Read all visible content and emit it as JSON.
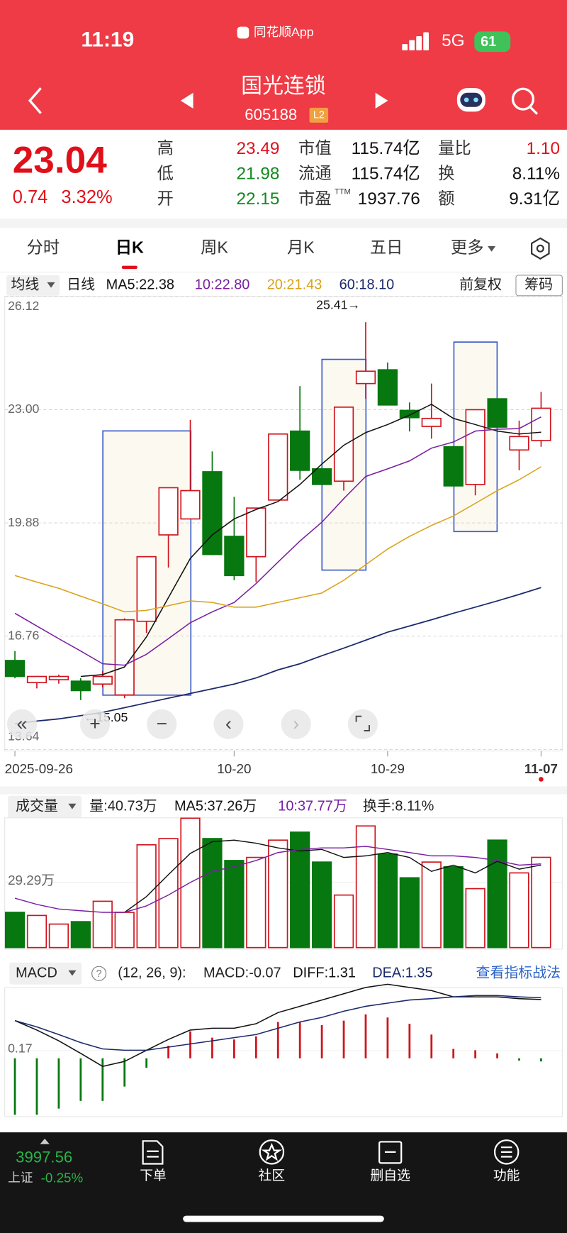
{
  "status_bar": {
    "time": "11:19",
    "app": "同花顺App",
    "network": "5G",
    "battery": "61"
  },
  "header": {
    "title": "国光连锁",
    "code": "605188",
    "badge": "L2"
  },
  "quote": {
    "price": "23.04",
    "change": "0.74",
    "change_pct": "3.32%",
    "stats": [
      [
        {
          "label": "高",
          "value": "23.49"
        },
        {
          "label": "低",
          "value": "21.98"
        },
        {
          "label": "开",
          "value": "22.15"
        }
      ],
      [
        {
          "label": "市值",
          "value": "115.74亿"
        },
        {
          "label": "流通",
          "value": "115.74亿"
        },
        {
          "label": "市盈",
          "sup": "TTM",
          "value": "1937.76"
        }
      ],
      [
        {
          "label": "量比",
          "value": "1.10"
        },
        {
          "label": "换",
          "value": "8.11%"
        },
        {
          "label": "额",
          "value": "9.31亿"
        }
      ]
    ]
  },
  "tabs": [
    "分时",
    "日K",
    "周K",
    "月K",
    "五日",
    "更多"
  ],
  "kline": {
    "indicator": "均线",
    "period": "日线",
    "adjust": "前复权",
    "chips": "筹码",
    "ylim": [
      13.64,
      26.12
    ],
    "yticks": [
      13.64,
      16.76,
      19.88,
      {
        "value": 23,
        "label": "23.00"
      },
      26.12
    ],
    "categories": [
      "2025-09-26",
      null,
      null,
      null,
      null,
      null,
      null,
      null,
      null,
      null,
      "10-20",
      null,
      null,
      null,
      null,
      null,
      null,
      "10-29",
      null,
      null,
      null,
      null,
      null,
      null,
      "11-07"
    ],
    "up_color": "#d0141c",
    "down_color": "#07770f",
    "open": [
      16.09,
      15.48,
      15.56,
      15.52,
      15.44,
      15.14,
      17.17,
      19.55,
      19.99,
      21.29,
      19.51,
      18.95,
      20.51,
      22.41,
      21.37,
      21.03,
      23.72,
      24.1,
      22.98,
      22.54,
      21.98,
      20.94,
      23.3,
      21.89,
      22.15
    ],
    "high": [
      16.35,
      15.65,
      15.7,
      15.6,
      15.8,
      17.25,
      18.95,
      20.85,
      22.72,
      21.85,
      20.6,
      20.29,
      22.33,
      23.65,
      21.4,
      23.07,
      25.41,
      24.3,
      23.2,
      23.72,
      21.98,
      23.0,
      23.3,
      22.7,
      23.49
    ],
    "low": [
      15.6,
      15.32,
      15.45,
      15.0,
      15.35,
      15.05,
      16.85,
      18.65,
      19.99,
      19.01,
      18.3,
      18.25,
      20.51,
      21.07,
      20.94,
      20.77,
      23.3,
      23.13,
      22.4,
      22.2,
      20.9,
      20.64,
      22.52,
      21.33,
      21.98
    ],
    "close": [
      15.65,
      15.65,
      15.65,
      15.26,
      15.65,
      17.21,
      18.95,
      20.85,
      20.77,
      19.01,
      18.43,
      20.29,
      22.33,
      21.33,
      20.94,
      23.07,
      24.06,
      23.13,
      22.78,
      22.76,
      20.9,
      23.0,
      22.52,
      22.26,
      23.04
    ],
    "max_label": "25.41→",
    "min_label": "←15.05",
    "series": [
      {
        "label": "MA5:22.38",
        "color": "#111111",
        "values": [
          null,
          null,
          null,
          15.65,
          15.7,
          15.91,
          16.74,
          17.82,
          18.9,
          19.55,
          19.99,
          20.25,
          20.47,
          20.94,
          21.5,
          22.02,
          22.37,
          22.59,
          22.85,
          23.15,
          22.76,
          22.59,
          22.41,
          22.33,
          22.38
        ]
      },
      {
        "label": "10:22.80",
        "color": "#7a1fa2",
        "values": [
          17.39,
          17.04,
          16.69,
          16.35,
          16.0,
          15.96,
          16.26,
          16.69,
          17.13,
          17.43,
          17.69,
          18.21,
          18.8,
          19.38,
          19.9,
          20.55,
          21.16,
          21.37,
          21.59,
          21.94,
          22.11,
          22.41,
          22.46,
          22.48,
          22.8
        ]
      },
      {
        "label": "20:21.43",
        "color": "#d9a21b",
        "values": [
          18.43,
          18.25,
          18.08,
          17.86,
          17.65,
          17.43,
          17.47,
          17.6,
          17.73,
          17.69,
          17.56,
          17.56,
          17.69,
          17.82,
          17.95,
          18.3,
          18.73,
          19.16,
          19.51,
          19.81,
          20.07,
          20.42,
          20.77,
          21.07,
          21.43
        ]
      },
      {
        "label": "60:18.10",
        "color": "#1c2a6b",
        "values": [
          14.35,
          14.42,
          14.48,
          14.57,
          14.66,
          14.79,
          14.92,
          15.05,
          15.18,
          15.31,
          15.44,
          15.61,
          15.83,
          16.0,
          16.22,
          16.43,
          16.65,
          16.87,
          17.04,
          17.21,
          17.39,
          17.56,
          17.73,
          17.91,
          18.1
        ]
      }
    ]
  },
  "volume": {
    "title": "成交量",
    "volume_label": "量:40.73万",
    "turnover": "换手:8.11%",
    "ylim": [
      0,
      60
    ],
    "yticks": [
      {
        "value": 29.29,
        "label": "29.29万"
      }
    ],
    "values": [
      15.9,
      14.5,
      10.6,
      11.7,
      20.9,
      15.9,
      46.4,
      49.2,
      58.4,
      49.2,
      39.3,
      40.7,
      48.5,
      52.1,
      38.6,
      23.7,
      54.9,
      42.2,
      31.5,
      38.6,
      36.5,
      26.6,
      48.5,
      33.7,
      40.73
    ],
    "series": [
      {
        "label": "MA5:37.26万",
        "color": "#111111",
        "values": [
          null,
          null,
          null,
          null,
          null,
          15.9,
          23.0,
          32.9,
          42.5,
          47.8,
          48.5,
          47.1,
          45.0,
          43.6,
          44.3,
          40.7,
          41.4,
          42.9,
          40.7,
          34.4,
          37.2,
          33.7,
          39.0,
          35.4,
          37.26
        ]
      },
      {
        "label": "10:37.77万",
        "color": "#7a1fa2",
        "values": [
          22.3,
          19.5,
          17.4,
          16.6,
          15.9,
          15.9,
          18.8,
          23.7,
          29.4,
          34.4,
          36.5,
          39.3,
          42.9,
          44.3,
          45.0,
          45.0,
          45.7,
          44.3,
          42.9,
          41.4,
          41.4,
          40.7,
          39.3,
          37.2,
          37.77
        ]
      }
    ]
  },
  "macd": {
    "title": "MACD",
    "params": "(12, 26, 9):",
    "value_label": "MACD:-0.07",
    "link": "查看指标战法",
    "ylim": [
      -1.3,
      1.54
    ],
    "yticks": [
      0.17
    ],
    "values": [
      -1.26,
      -1.26,
      -1.12,
      -0.95,
      -0.95,
      -0.63,
      -0.21,
      0.28,
      0.6,
      0.46,
      0.42,
      0.49,
      0.81,
      0.81,
      0.74,
      0.84,
      0.98,
      0.91,
      0.77,
      0.53,
      0.21,
      0.18,
      0.11,
      -0.05,
      -0.07
    ],
    "series": [
      {
        "label": "DIFF:1.31",
        "color": "#111111",
        "values": [
          0.84,
          0.63,
          0.39,
          0.11,
          -0.18,
          -0.07,
          0.18,
          0.42,
          0.63,
          0.67,
          0.67,
          0.77,
          1.02,
          1.16,
          1.3,
          1.44,
          1.58,
          1.65,
          1.58,
          1.51,
          1.37,
          1.37,
          1.37,
          1.33,
          1.31
        ]
      },
      {
        "label": "DEA:1.35",
        "color": "#1c2a6b",
        "values": [
          0.84,
          0.7,
          0.53,
          0.35,
          0.21,
          0.18,
          0.18,
          0.25,
          0.32,
          0.39,
          0.46,
          0.53,
          0.67,
          0.81,
          0.91,
          1.05,
          1.16,
          1.23,
          1.3,
          1.33,
          1.37,
          1.4,
          1.4,
          1.37,
          1.35
        ]
      }
    ]
  },
  "bottom_bar": {
    "index_value": "3997.56",
    "index_name": "上证",
    "index_change": "-0.25%",
    "items": [
      "下单",
      "社区",
      "删自选",
      "功能"
    ]
  }
}
